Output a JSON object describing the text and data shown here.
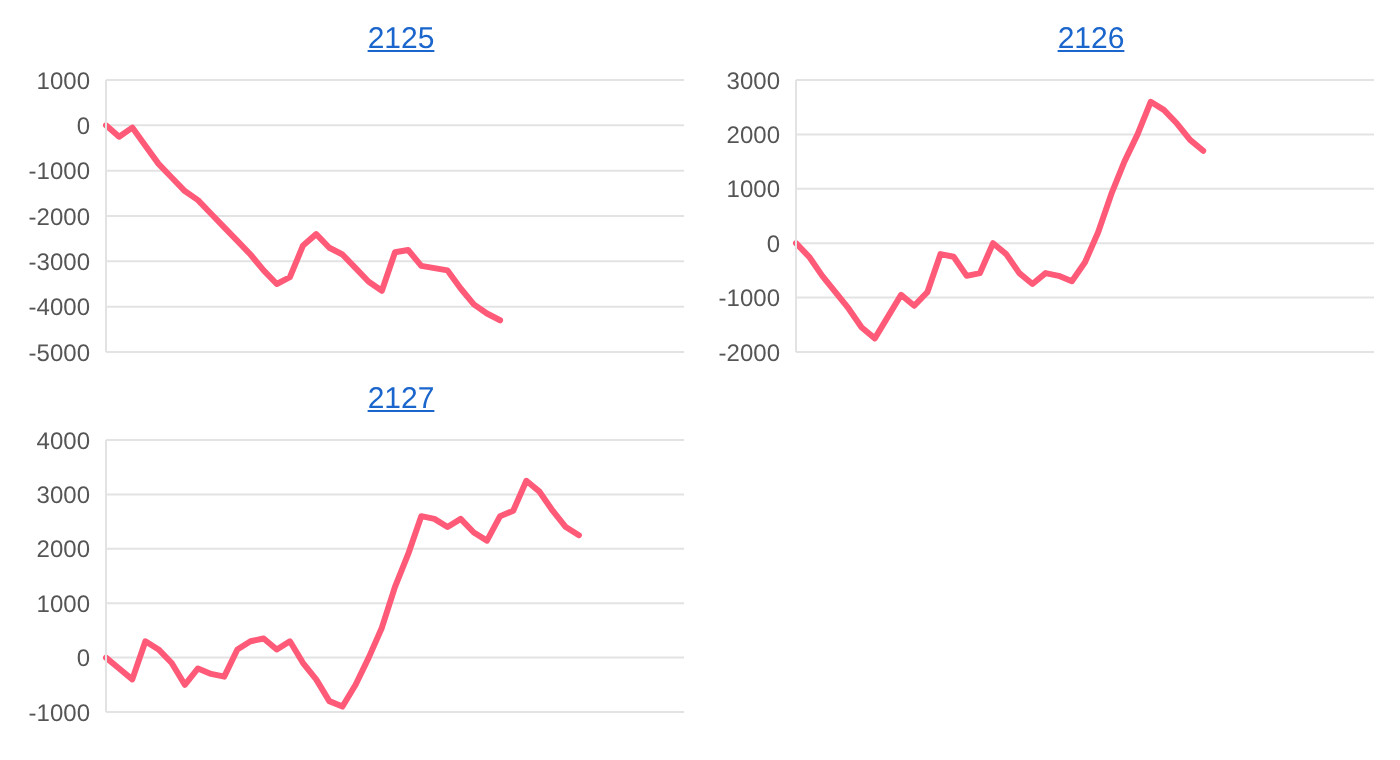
{
  "chart_data": [
    {
      "type": "line",
      "title": "2125",
      "categories": [
        null,
        null,
        null,
        null,
        null,
        null,
        null,
        null,
        null,
        null,
        null,
        null,
        null,
        null,
        null,
        null,
        null,
        null,
        null,
        null,
        null,
        null,
        null,
        null,
        null,
        null,
        null,
        null,
        null,
        null,
        null,
        null,
        null,
        null,
        null,
        null,
        null,
        null,
        null,
        null,
        null,
        null,
        null,
        null,
        null
      ],
      "series": [
        {
          "color": "#ff5a78",
          "values": [
            0,
            -250,
            -50,
            -450,
            -850,
            -1150,
            -1450,
            -1650,
            -1950,
            -2250,
            -2550,
            -2850,
            -3200,
            -3500,
            -3350,
            -2650,
            -2400,
            -2700,
            -2850,
            -3150,
            -3450,
            -3650,
            -2800,
            -2750,
            -3100,
            -3150,
            -3200,
            -3600,
            -3950,
            -4150,
            -4300,
            null,
            null,
            null,
            null,
            null,
            null,
            null,
            null,
            null,
            null,
            null,
            null,
            null,
            null
          ]
        }
      ],
      "ylim": [
        -5000,
        1000
      ],
      "yticks": [
        -5000,
        -4000,
        -3000,
        -2000,
        -1000,
        0,
        1000
      ],
      "grid": "y",
      "tick_labels": "y",
      "marker": "none"
    },
    {
      "type": "line",
      "title": "2126",
      "categories": [
        null,
        null,
        null,
        null,
        null,
        null,
        null,
        null,
        null,
        null,
        null,
        null,
        null,
        null,
        null,
        null,
        null,
        null,
        null,
        null,
        null,
        null,
        null,
        null,
        null,
        null,
        null,
        null,
        null,
        null,
        null,
        null,
        null,
        null,
        null,
        null,
        null,
        null,
        null,
        null,
        null,
        null,
        null,
        null,
        null
      ],
      "series": [
        {
          "color": "#ff5a78",
          "values": [
            0,
            -250,
            -600,
            -900,
            -1200,
            -1550,
            -1750,
            -1350,
            -950,
            -1150,
            -900,
            -200,
            -250,
            -600,
            -550,
            0,
            -200,
            -550,
            -750,
            -550,
            -600,
            -700,
            -350,
            200,
            900,
            1500,
            2000,
            2600,
            2450,
            2200,
            1900,
            1700,
            null,
            null,
            null,
            null,
            null,
            null,
            null,
            null,
            null,
            null,
            null,
            null,
            null
          ]
        }
      ],
      "ylim": [
        -2000,
        3000
      ],
      "yticks": [
        -2000,
        -1000,
        0,
        1000,
        2000,
        3000
      ],
      "grid": "y",
      "tick_labels": "y",
      "marker": "none"
    },
    {
      "type": "line",
      "title": "2127",
      "categories": [
        null,
        null,
        null,
        null,
        null,
        null,
        null,
        null,
        null,
        null,
        null,
        null,
        null,
        null,
        null,
        null,
        null,
        null,
        null,
        null,
        null,
        null,
        null,
        null,
        null,
        null,
        null,
        null,
        null,
        null,
        null,
        null,
        null,
        null,
        null,
        null,
        null,
        null,
        null,
        null,
        null,
        null,
        null,
        null,
        null
      ],
      "series": [
        {
          "color": "#ff5a78",
          "values": [
            0,
            -200,
            -400,
            300,
            150,
            -100,
            -500,
            -200,
            -300,
            -350,
            150,
            300,
            350,
            150,
            300,
            -100,
            -400,
            -800,
            -900,
            -500,
            0,
            550,
            1300,
            1900,
            2600,
            2550,
            2400,
            2550,
            2300,
            2150,
            2600,
            2700,
            3250,
            3050,
            2700,
            2400,
            2250,
            null,
            null,
            null,
            null,
            null,
            null,
            null,
            null
          ]
        }
      ],
      "ylim": [
        -1000,
        4000
      ],
      "yticks": [
        -1000,
        0,
        1000,
        2000,
        3000,
        4000
      ],
      "grid": "y",
      "tick_labels": "y",
      "marker": "none"
    }
  ]
}
